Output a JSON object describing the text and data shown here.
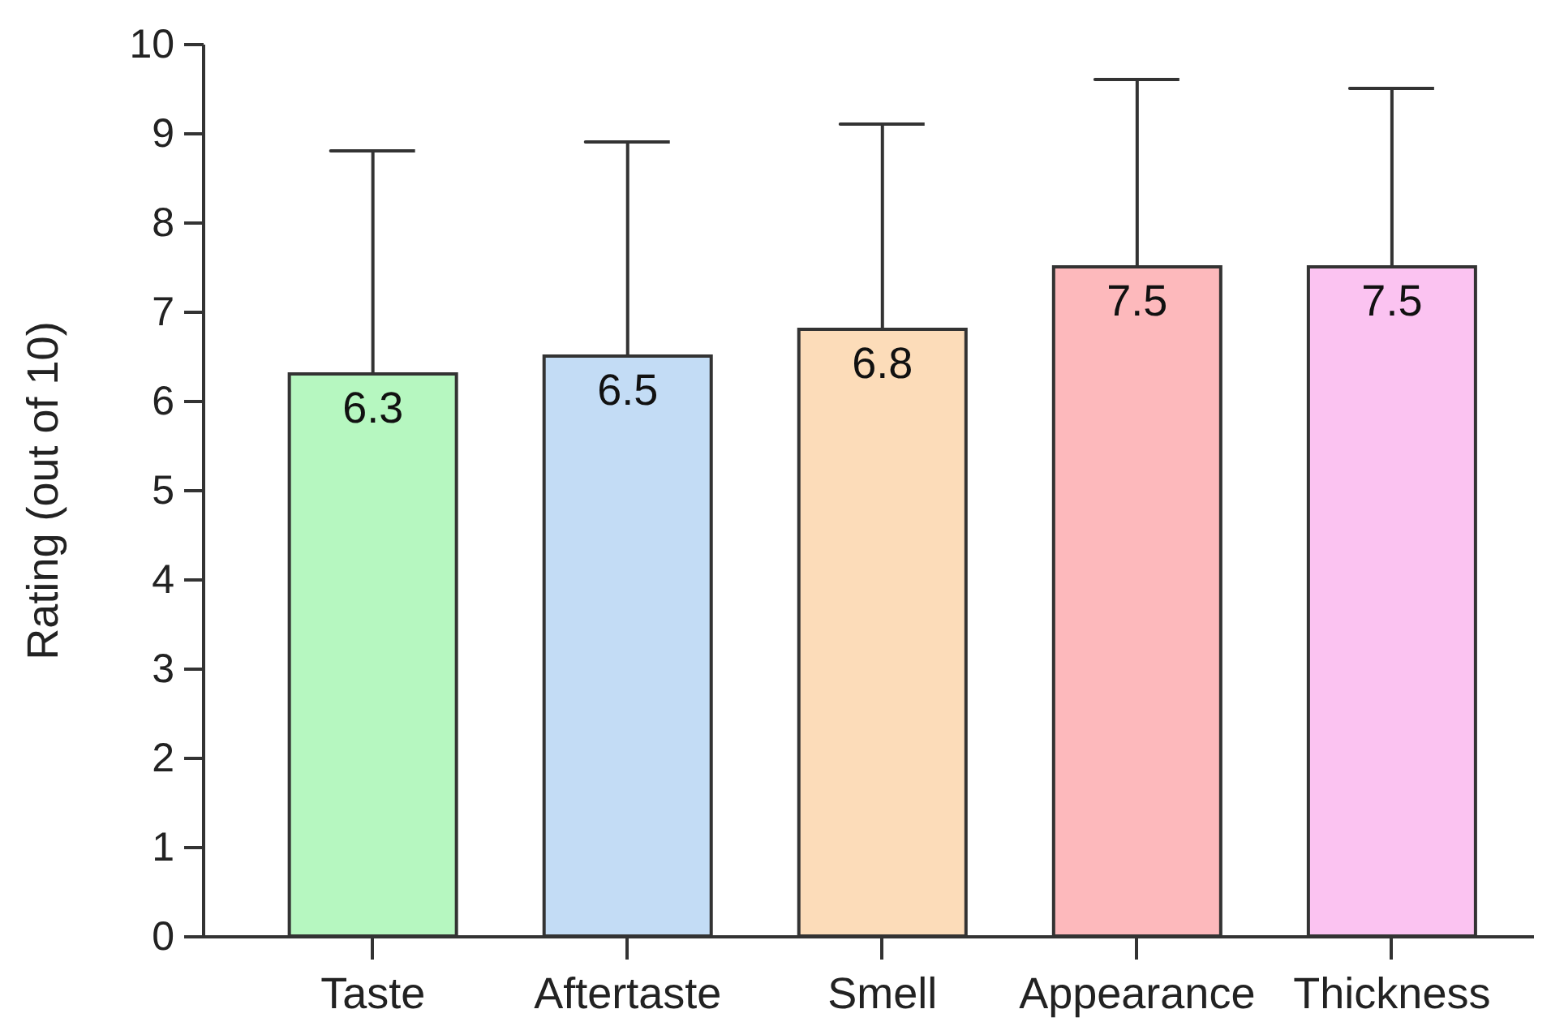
{
  "chart_data": {
    "type": "bar",
    "ylabel": "Rating (out of 10)",
    "categories": [
      "Taste",
      "Aftertaste",
      "Smell",
      "Appearance",
      "Thickness"
    ],
    "values": [
      6.3,
      6.5,
      6.8,
      7.5,
      7.5
    ],
    "colors": [
      "#b6f7c0",
      "#c3dcf5",
      "#fcdcb9",
      "#fdb9bc",
      "#fbc3f1"
    ],
    "errors": [
      [
        6.3,
        8.8
      ],
      [
        6.5,
        8.9
      ],
      [
        6.8,
        9.1
      ],
      [
        7.5,
        9.6
      ],
      [
        7.5,
        9.5
      ]
    ],
    "data_labels": true,
    "ylim": [
      0,
      10
    ],
    "yticks": [
      0,
      1,
      2,
      3,
      4,
      5,
      6,
      7,
      8,
      9,
      10
    ]
  }
}
